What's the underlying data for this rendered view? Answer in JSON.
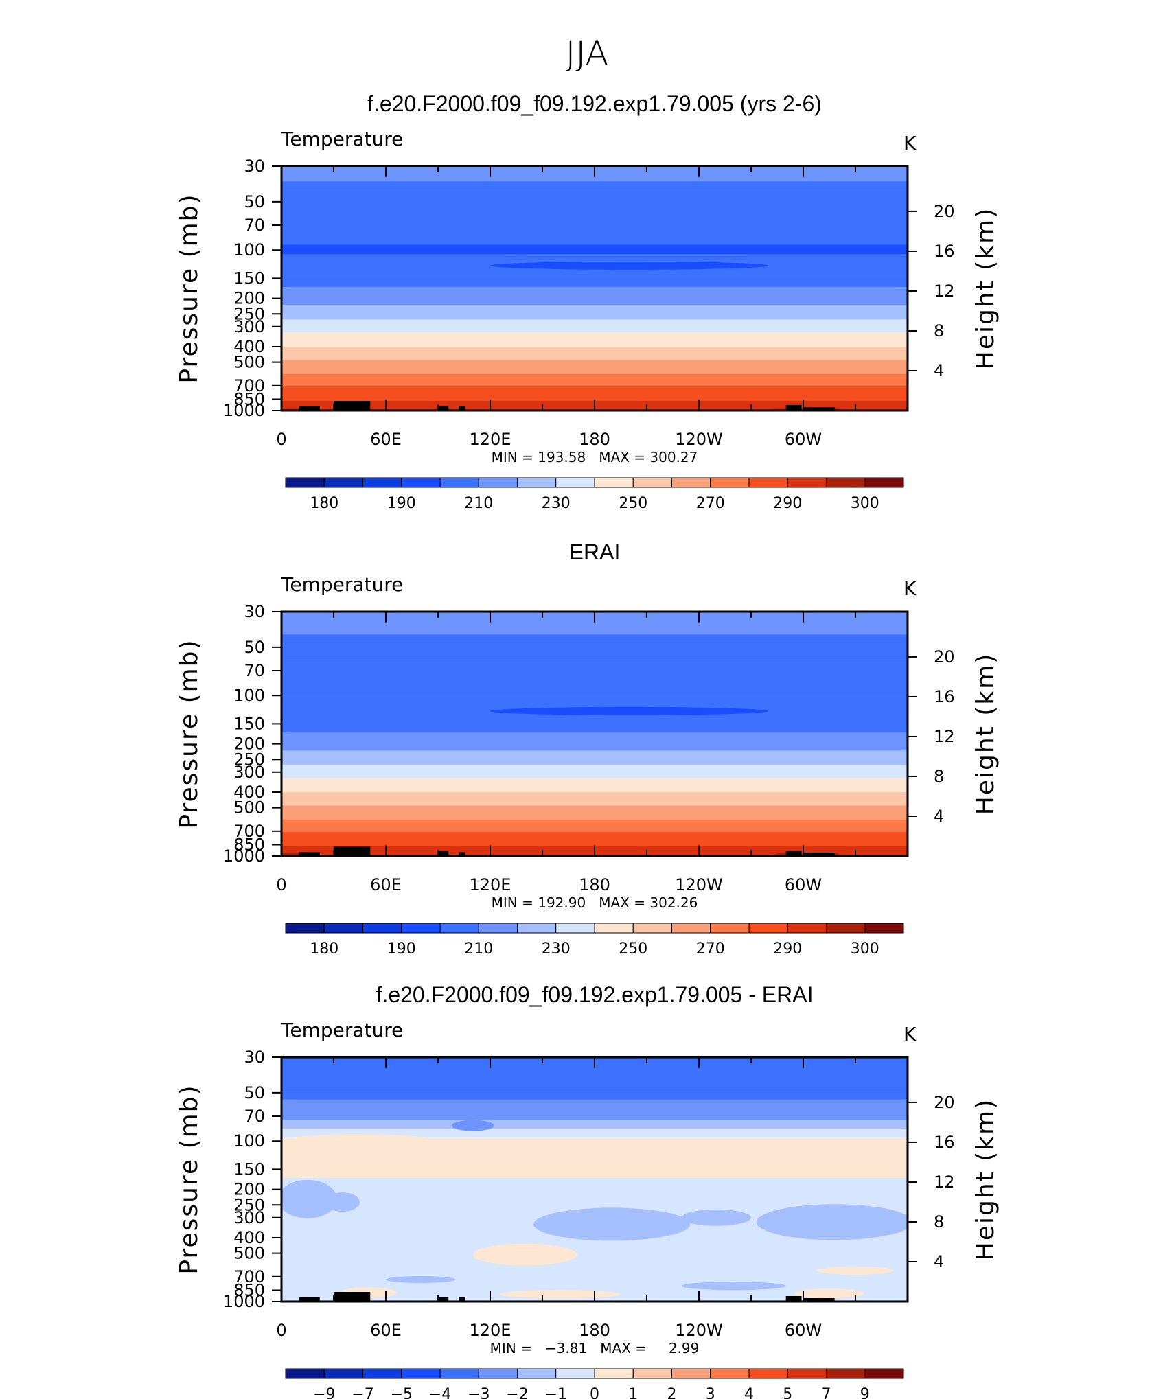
{
  "figure_title": "JJA",
  "chart_data": [
    {
      "type": "heatmap",
      "panel": "model",
      "title": "f.e20.F2000.f09_f09.192.exp1.79.005 (yrs 2-6)",
      "variable": "Temperature",
      "units": "K",
      "xlabel": "",
      "ylabel": "Pressure (mb)",
      "ylabel_right": "Height (km)",
      "x_ticks": [
        "0",
        "60E",
        "120E",
        "180",
        "120W",
        "60W"
      ],
      "x_range": [
        0,
        360
      ],
      "y_ticks": [
        30,
        50,
        70,
        100,
        150,
        200,
        250,
        300,
        400,
        500,
        700,
        850,
        1000
      ],
      "y_range": [
        1000,
        30
      ],
      "height_ticks": [
        4,
        8,
        12,
        16,
        20
      ],
      "stats": "MIN = 193.58   MAX = 300.27",
      "contour_levels": [
        180,
        185,
        190,
        200,
        210,
        220,
        230,
        240,
        250,
        260,
        270,
        280,
        290,
        295,
        300
      ],
      "colorbar_labels": [
        "180",
        "190",
        "210",
        "230",
        "250",
        "270",
        "290",
        "300"
      ],
      "profile": [
        {
          "p": 30,
          "value": 213
        },
        {
          "p": 50,
          "value": 206
        },
        {
          "p": 70,
          "value": 203
        },
        {
          "p": 100,
          "value": 199
        },
        {
          "p": 150,
          "value": 206
        },
        {
          "p": 200,
          "value": 215
        },
        {
          "p": 250,
          "value": 226
        },
        {
          "p": 300,
          "value": 236
        },
        {
          "p": 400,
          "value": 250
        },
        {
          "p": 500,
          "value": 262
        },
        {
          "p": 700,
          "value": 279
        },
        {
          "p": 850,
          "value": 289
        },
        {
          "p": 1000,
          "value": 296
        }
      ]
    },
    {
      "type": "heatmap",
      "panel": "obs",
      "title": "ERAI",
      "variable": "Temperature",
      "units": "K",
      "xlabel": "",
      "ylabel": "Pressure (mb)",
      "ylabel_right": "Height (km)",
      "x_ticks": [
        "0",
        "60E",
        "120E",
        "180",
        "120W",
        "60W"
      ],
      "x_range": [
        0,
        360
      ],
      "y_ticks": [
        30,
        50,
        70,
        100,
        150,
        200,
        250,
        300,
        400,
        500,
        700,
        850,
        1000
      ],
      "y_range": [
        1000,
        30
      ],
      "height_ticks": [
        4,
        8,
        12,
        16,
        20
      ],
      "stats": "MIN = 192.90   MAX = 302.26",
      "contour_levels": [
        180,
        185,
        190,
        200,
        210,
        220,
        230,
        240,
        250,
        260,
        270,
        280,
        290,
        295,
        300
      ],
      "colorbar_labels": [
        "180",
        "190",
        "210",
        "230",
        "250",
        "270",
        "290",
        "300"
      ],
      "profile": [
        {
          "p": 30,
          "value": 216
        },
        {
          "p": 50,
          "value": 207
        },
        {
          "p": 70,
          "value": 204
        },
        {
          "p": 100,
          "value": 200
        },
        {
          "p": 150,
          "value": 206
        },
        {
          "p": 200,
          "value": 215
        },
        {
          "p": 250,
          "value": 226
        },
        {
          "p": 300,
          "value": 236
        },
        {
          "p": 400,
          "value": 250
        },
        {
          "p": 500,
          "value": 262
        },
        {
          "p": 700,
          "value": 279
        },
        {
          "p": 850,
          "value": 289
        },
        {
          "p": 1000,
          "value": 297
        }
      ]
    },
    {
      "type": "heatmap",
      "panel": "diff",
      "title": "f.e20.F2000.f09_f09.192.exp1.79.005 - ERAI",
      "variable": "Temperature",
      "units": "K",
      "xlabel": "",
      "ylabel": "Pressure (mb)",
      "ylabel_right": "Height (km)",
      "x_ticks": [
        "0",
        "60E",
        "120E",
        "180",
        "120W",
        "60W"
      ],
      "x_range": [
        0,
        360
      ],
      "y_ticks": [
        30,
        50,
        70,
        100,
        150,
        200,
        250,
        300,
        400,
        500,
        700,
        850,
        1000
      ],
      "y_range": [
        1000,
        30
      ],
      "height_ticks": [
        4,
        8,
        12,
        16,
        20
      ],
      "stats": "MIN =   −3.81   MAX =     2.99",
      "contour_levels": [
        -9,
        -7,
        -5,
        -4,
        -3,
        -2,
        -1,
        0,
        1,
        2,
        3,
        4,
        5,
        7,
        9
      ],
      "colorbar_labels": [
        "−9",
        "−7",
        "−5",
        "−4",
        "−3",
        "−2",
        "−1",
        "0",
        "1",
        "2",
        "3",
        "4",
        "5",
        "7",
        "9"
      ],
      "profile": [
        {
          "p": 30,
          "value": -3.3
        },
        {
          "p": 50,
          "value": -3.2
        },
        {
          "p": 70,
          "value": -2.5
        },
        {
          "p": 100,
          "value": 0.4
        },
        {
          "p": 150,
          "value": 0.3
        },
        {
          "p": 200,
          "value": -0.4
        },
        {
          "p": 250,
          "value": -0.5
        },
        {
          "p": 300,
          "value": -0.6
        },
        {
          "p": 400,
          "value": -0.5
        },
        {
          "p": 500,
          "value": -0.3
        },
        {
          "p": 700,
          "value": -0.4
        },
        {
          "p": 850,
          "value": -0.5
        },
        {
          "p": 1000,
          "value": -0.3
        }
      ]
    }
  ],
  "colors": {
    "palette": [
      "#0a1a8c",
      "#0a2bb8",
      "#0d3de0",
      "#1a4dff",
      "#3d71ff",
      "#6e95ff",
      "#a5bfff",
      "#d6e6ff",
      "#fde6d2",
      "#fdc7aa",
      "#fca07a",
      "#fb7a48",
      "#f64e1e",
      "#d83210",
      "#a6200a",
      "#7a0a0a"
    ]
  }
}
